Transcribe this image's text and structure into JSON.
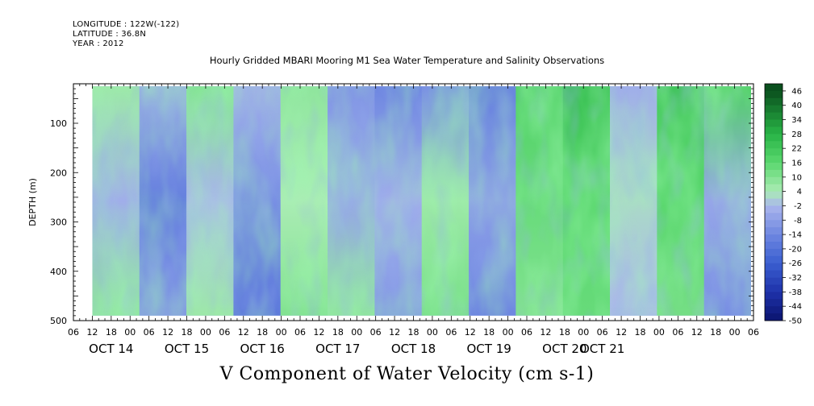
{
  "header": {
    "longitude": "LONGITUDE : 122W(-122)",
    "latitude": "LATITUDE : 36.8N",
    "year": "YEAR : 2012"
  },
  "chart_data": {
    "type": "heatmap",
    "title": "Hourly Gridded MBARI Mooring M1 Sea Water Temperature and Salinity Observations",
    "xlabel": "V Component of Water Velocity (cm s-1)",
    "ylabel": "DEPTH (m)",
    "ylim": [
      500,
      20
    ],
    "y_ticks": [
      100,
      200,
      300,
      400,
      500
    ],
    "x_hour_ticks": [
      "06",
      "12",
      "18",
      "00",
      "06",
      "12",
      "18",
      "00",
      "06",
      "12",
      "18",
      "00",
      "06",
      "12",
      "18",
      "00",
      "06",
      "12",
      "18",
      "00",
      "06",
      "12",
      "18",
      "00",
      "06",
      "12",
      "18",
      "00",
      "06",
      "12",
      "18",
      "00",
      "06",
      "12",
      "18",
      "00",
      "06"
    ],
    "x_day_labels": [
      "OCT 14",
      "OCT 15",
      "OCT 16",
      "OCT 17",
      "OCT 18",
      "OCT 19",
      "OCT 20",
      "OCT 21"
    ],
    "x_range_hours": [
      0,
      216
    ],
    "data_start_hour": 6,
    "data_depth_range": [
      25,
      490
    ],
    "colorbar_labels": [
      "46",
      "40",
      "34",
      "28",
      "22",
      "16",
      "10",
      "4",
      "-2",
      "-8",
      "-14",
      "-20",
      "-26",
      "-32",
      "-38",
      "-44",
      "-50"
    ],
    "colorbar_range": [
      -50,
      49
    ],
    "colors": {
      "strong_negative": "#0a1a7a",
      "negative": "#3a5fd0",
      "weak_negative": "#a9b6ec",
      "weak_positive": "#a8ecb0",
      "positive": "#3fcf5e",
      "strong_positive": "#0a4a1a"
    },
    "column_profile_cm_s": [
      {
        "day": "OCT 14",
        "hour": "12",
        "surface": 6,
        "mid": -4,
        "deep": 8
      },
      {
        "day": "OCT 15",
        "hour": "00",
        "surface": -6,
        "mid": -16,
        "deep": -10
      },
      {
        "day": "OCT 15",
        "hour": "12",
        "surface": 10,
        "mid": -2,
        "deep": 6
      },
      {
        "day": "OCT 16",
        "hour": "00",
        "surface": -4,
        "mid": -12,
        "deep": -18
      },
      {
        "day": "OCT 16",
        "hour": "12",
        "surface": 8,
        "mid": 4,
        "deep": 10
      },
      {
        "day": "OCT 17",
        "hour": "00",
        "surface": -10,
        "mid": -6,
        "deep": 8
      },
      {
        "day": "OCT 17",
        "hour": "12",
        "surface": -14,
        "mid": -4,
        "deep": -10
      },
      {
        "day": "OCT 18",
        "hour": "00",
        "surface": -12,
        "mid": 6,
        "deep": 12
      },
      {
        "day": "OCT 18",
        "hour": "12",
        "surface": -16,
        "mid": -8,
        "deep": -14
      },
      {
        "day": "OCT 19",
        "hour": "00",
        "surface": 18,
        "mid": 14,
        "deep": 10
      },
      {
        "day": "OCT 19",
        "hour": "12",
        "surface": 24,
        "mid": 16,
        "deep": 14
      },
      {
        "day": "OCT 20",
        "hour": "00",
        "surface": -4,
        "mid": 2,
        "deep": -2
      },
      {
        "day": "OCT 20",
        "hour": "12",
        "surface": 22,
        "mid": 16,
        "deep": 12
      },
      {
        "day": "OCT 21",
        "hour": "00",
        "surface": 18,
        "mid": -6,
        "deep": -12
      }
    ]
  }
}
